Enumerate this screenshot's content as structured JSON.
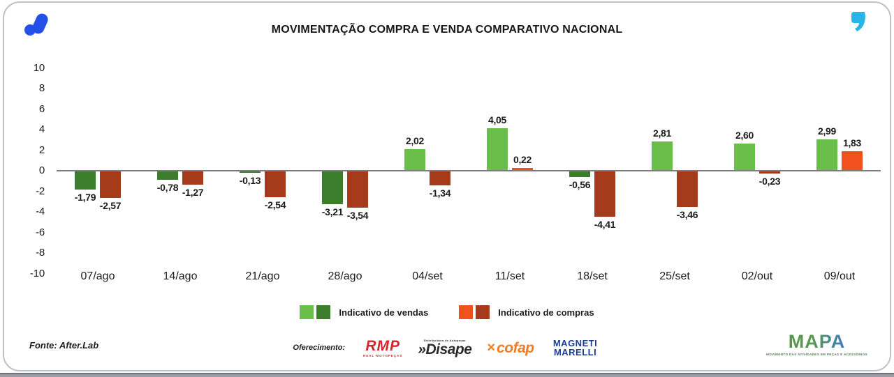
{
  "header": {
    "title": "MOVIMENTAÇÃO COMPRA E VENDA COMPARATIVO NACIONAL",
    "brand_logo_color": "#2351e8",
    "quote_icon_color": "#27b4e8"
  },
  "chart_data": {
    "type": "bar",
    "title": "MOVIMENTAÇÃO COMPRA E VENDA COMPARATIVO NACIONAL",
    "categories": [
      "07/ago",
      "14/ago",
      "21/ago",
      "28/ago",
      "04/set",
      "11/set",
      "18/set",
      "25/set",
      "02/out",
      "09/out"
    ],
    "series": [
      {
        "name": "Indicativo de vendas",
        "values": [
          -1.79,
          -0.78,
          -0.13,
          -3.21,
          2.02,
          4.05,
          -0.56,
          2.81,
          2.6,
          2.99
        ],
        "labels": [
          "-1,79",
          "-0,78",
          "-0,13",
          "-3,21",
          "2,02",
          "4,05",
          "-0,56",
          "2,81",
          "2,60",
          "2,99"
        ],
        "color_positive": "#6abf4b",
        "color_negative": "#3c7d2c"
      },
      {
        "name": "Indicativo de compras",
        "values": [
          -2.57,
          -1.27,
          -2.54,
          -3.54,
          -1.34,
          0.22,
          -4.41,
          -3.46,
          -0.23,
          1.83
        ],
        "labels": [
          "-2,57",
          "-1,27",
          "-2,54",
          "-3,54",
          "-1,34",
          "0,22",
          "-4,41",
          "-3,46",
          "-0,23",
          "1,83"
        ],
        "color_positive": "#f1511f",
        "color_negative": "#a63b1b"
      }
    ],
    "ylim": [
      -10,
      10
    ],
    "yticks": [
      10,
      8,
      6,
      4,
      2,
      0,
      -2,
      -4,
      -6,
      -8,
      -10
    ],
    "grid": false,
    "legend_position": "bottom"
  },
  "legend": {
    "items": [
      {
        "label": "Indicativo de vendas",
        "colors": [
          "#6abf4b",
          "#3c7d2c"
        ]
      },
      {
        "label": "Indicativo de compras",
        "colors": [
          "#f1511f",
          "#a63b1b"
        ]
      }
    ]
  },
  "footer": {
    "source": "Fonte: After.Lab",
    "sponsors_label": "Oferecimento:",
    "sponsors": [
      {
        "name": "RMP",
        "subtext": "REAL MOTOPEÇAS",
        "color": "#d8232a"
      },
      {
        "name": "»Disape",
        "subtext": "Distribuidora de Autopeças",
        "color": "#2b2b2b"
      },
      {
        "name": "cofap",
        "mark": "×",
        "color": "#f47b20"
      },
      {
        "name": "MAGNETI MARELLI",
        "color": "#1b3e94"
      }
    ],
    "mapa": {
      "name": "MAPA",
      "tagline": "MOVIMENTO DAS ATIVIDADES EM PEÇAS E ACESSÓRIOS"
    }
  }
}
